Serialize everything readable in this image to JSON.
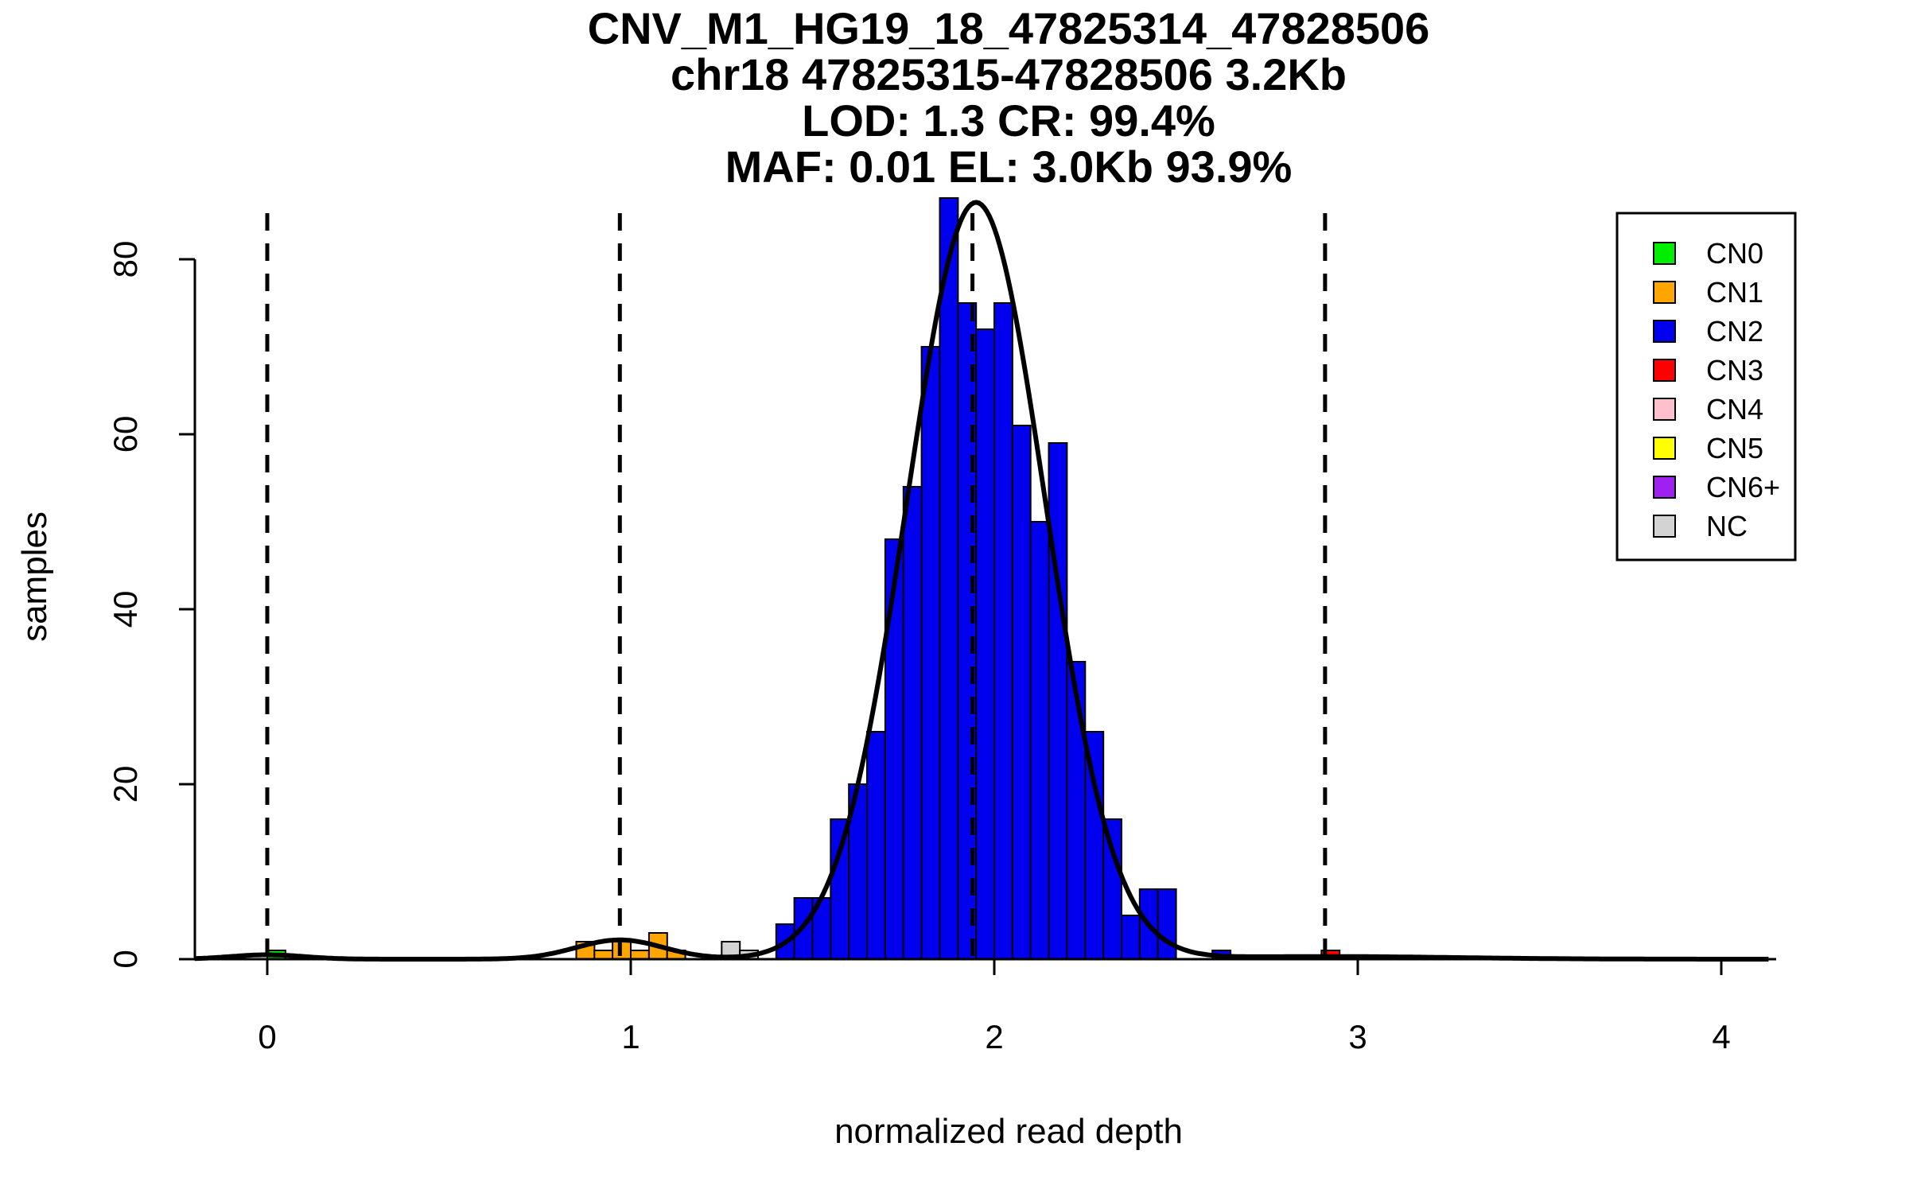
{
  "chart_data": {
    "type": "bar",
    "title_lines": [
      "CNV_M1_HG19_18_47825314_47828506",
      "chr18 47825315-47828506 3.2Kb",
      "LOD: 1.3 CR: 99.4%",
      "MAF: 0.01 EL: 3.0Kb 93.9%"
    ],
    "xlabel": "normalized read depth",
    "ylabel": "samples",
    "xlim": [
      -0.2,
      4.13
    ],
    "ylim": [
      0,
      87
    ],
    "x_ticks": [
      0,
      1,
      2,
      3,
      4
    ],
    "x_tick_labels": [
      "0",
      "1",
      "2",
      "3",
      "4"
    ],
    "y_ticks": [
      0,
      20,
      40,
      60,
      80
    ],
    "y_tick_labels": [
      "0",
      "20",
      "40",
      "60",
      "80"
    ],
    "bin_width": 0.05,
    "bins": [
      {
        "x0": 0.0,
        "count": 1,
        "cn": "CN0"
      },
      {
        "x0": 0.85,
        "count": 2,
        "cn": "CN1"
      },
      {
        "x0": 0.9,
        "count": 1,
        "cn": "CN1"
      },
      {
        "x0": 0.95,
        "count": 2,
        "cn": "CN1"
      },
      {
        "x0": 1.0,
        "count": 1,
        "cn": "CN1"
      },
      {
        "x0": 1.05,
        "count": 3,
        "cn": "CN1"
      },
      {
        "x0": 1.1,
        "count": 1,
        "cn": "CN1"
      },
      {
        "x0": 1.25,
        "count": 2,
        "cn": "NC"
      },
      {
        "x0": 1.3,
        "count": 1,
        "cn": "NC"
      },
      {
        "x0": 1.4,
        "count": 4,
        "cn": "CN2"
      },
      {
        "x0": 1.45,
        "count": 7,
        "cn": "CN2"
      },
      {
        "x0": 1.5,
        "count": 7,
        "cn": "CN2"
      },
      {
        "x0": 1.55,
        "count": 16,
        "cn": "CN2"
      },
      {
        "x0": 1.6,
        "count": 20,
        "cn": "CN2"
      },
      {
        "x0": 1.65,
        "count": 26,
        "cn": "CN2"
      },
      {
        "x0": 1.7,
        "count": 48,
        "cn": "CN2"
      },
      {
        "x0": 1.75,
        "count": 54,
        "cn": "CN2"
      },
      {
        "x0": 1.8,
        "count": 70,
        "cn": "CN2"
      },
      {
        "x0": 1.85,
        "count": 87,
        "cn": "CN2"
      },
      {
        "x0": 1.9,
        "count": 75,
        "cn": "CN2"
      },
      {
        "x0": 1.95,
        "count": 72,
        "cn": "CN2"
      },
      {
        "x0": 2.0,
        "count": 75,
        "cn": "CN2"
      },
      {
        "x0": 2.05,
        "count": 61,
        "cn": "CN2"
      },
      {
        "x0": 2.1,
        "count": 50,
        "cn": "CN2"
      },
      {
        "x0": 2.15,
        "count": 59,
        "cn": "CN2"
      },
      {
        "x0": 2.2,
        "count": 34,
        "cn": "CN2"
      },
      {
        "x0": 2.25,
        "count": 26,
        "cn": "CN2"
      },
      {
        "x0": 2.3,
        "count": 16,
        "cn": "CN2"
      },
      {
        "x0": 2.35,
        "count": 5,
        "cn": "CN2"
      },
      {
        "x0": 2.4,
        "count": 8,
        "cn": "CN2"
      },
      {
        "x0": 2.45,
        "count": 8,
        "cn": "CN2"
      },
      {
        "x0": 2.6,
        "count": 1,
        "cn": "CN2"
      },
      {
        "x0": 2.9,
        "count": 1,
        "cn": "CN3"
      }
    ],
    "baseline_segments": [
      [
        -0.2,
        0.25
      ],
      [
        0.45,
        3.85
      ]
    ],
    "fit_components": [
      {
        "mean": 0.97,
        "sd": 0.12,
        "peak": 2.2
      },
      {
        "mean": 1.95,
        "sd": 0.19,
        "peak": 86.5
      },
      {
        "mean": 0.0,
        "sd": 0.1,
        "peak": 0.5
      },
      {
        "mean": 2.92,
        "sd": 0.35,
        "peak": 0.3
      }
    ],
    "copy_number_lines": [
      0,
      0.97,
      1.94,
      2.91
    ],
    "legend_position": "top-right",
    "legend": [
      {
        "label": "CN0",
        "color": "#00ee00"
      },
      {
        "label": "CN1",
        "color": "#ffa500"
      },
      {
        "label": "CN2",
        "color": "#0000ee"
      },
      {
        "label": "CN3",
        "color": "#ff0000"
      },
      {
        "label": "CN4",
        "color": "#ffc0cb"
      },
      {
        "label": "CN5",
        "color": "#ffff00"
      },
      {
        "label": "CN6+",
        "color": "#a020f0"
      },
      {
        "label": "NC",
        "color": "#d3d3d3"
      }
    ]
  }
}
